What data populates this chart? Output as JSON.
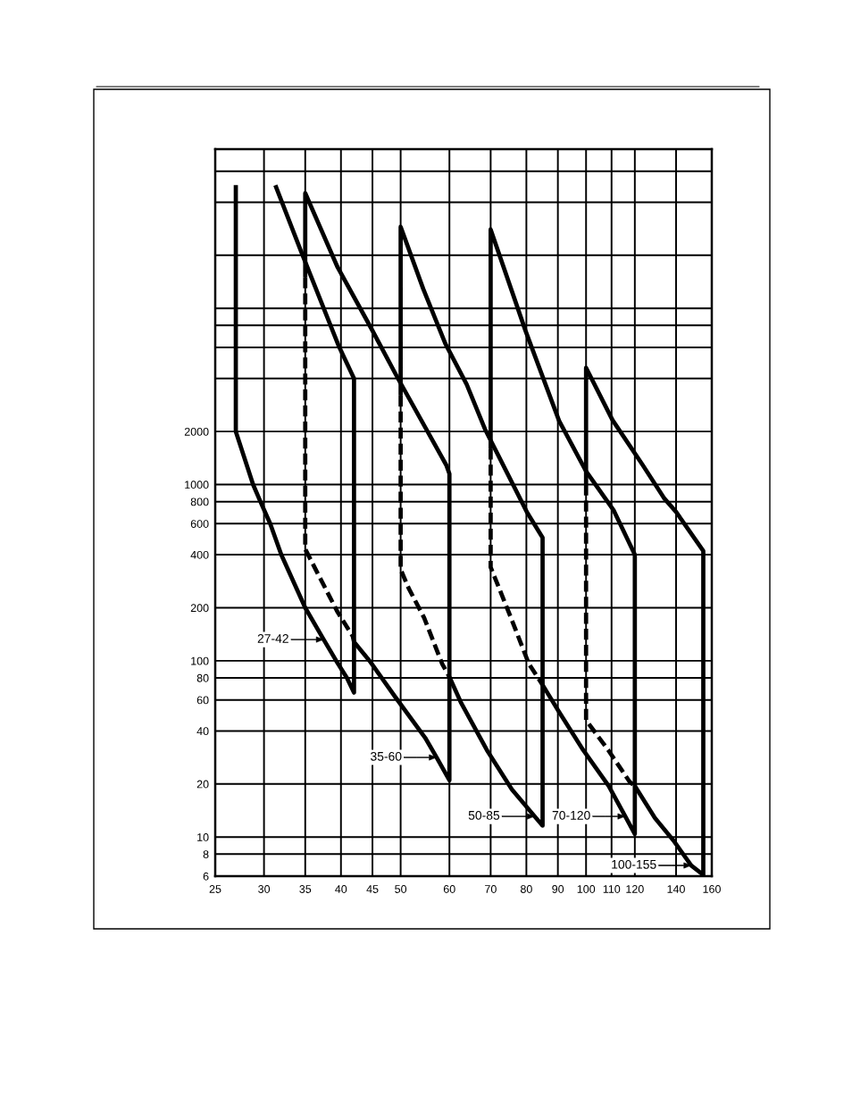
{
  "chart_data": {
    "type": "line",
    "log": "xy",
    "xlim": [
      25,
      160
    ],
    "ylim": [
      6,
      80000
    ],
    "xticks": [
      25,
      30,
      35,
      40,
      45,
      50,
      60,
      70,
      80,
      90,
      100,
      110,
      120,
      140,
      160
    ],
    "yticks": [
      6,
      8,
      10,
      20,
      40,
      60,
      80,
      100,
      200,
      400,
      600,
      800,
      1000,
      2000,
      {
        "value": 4000,
        "label": null
      },
      {
        "value": 6000,
        "label": null
      },
      {
        "value": 8000,
        "label": null
      },
      {
        "value": 10000,
        "label": null
      },
      {
        "value": 20000,
        "label": null
      },
      {
        "value": 40000,
        "label": null
      },
      {
        "value": 60000,
        "label": null
      }
    ],
    "grid": true,
    "series": [
      {
        "color": "#000000",
        "line_style": "solid",
        "x": [
          27,
          27,
          28.8,
          29.6,
          30.7,
          32,
          35,
          37.5,
          39.3,
          40.9,
          42,
          42,
          39.6,
          34.5,
          31.3
        ],
        "values": [
          50000,
          2000,
          1000,
          800,
          600,
          400,
          200,
          132,
          100,
          80,
          66,
          4000,
          6200,
          20800,
          50000
        ]
      },
      {
        "color": "#000000",
        "line_style": "solid",
        "x": [
          35,
          35,
          39.5,
          44.7,
          49.5,
          59.3,
          60,
          60,
          57.2,
          54.8,
          48.9,
          44.7,
          42
        ],
        "values": [
          15000,
          45000,
          17100,
          7800,
          4000,
          1290,
          1150,
          21,
          28.3,
          36.6,
          63,
          98,
          128
        ]
      },
      {
        "color": "#000000",
        "line_style": "dashed",
        "x": [
          35,
          35,
          39.5,
          41.8,
          42
        ],
        "values": [
          15000,
          430,
          189,
          138,
          128
        ]
      },
      {
        "color": "#000000",
        "line_style": "solid",
        "x": [
          50,
          50,
          54.4,
          59.1,
          64,
          68.5,
          80.3,
          85,
          85,
          82.5,
          75.8,
          69,
          62.7,
          60
        ],
        "values": [
          3200,
          29000,
          12900,
          6300,
          3700,
          2070,
          690,
          500,
          11.6,
          13.1,
          18.6,
          31.2,
          57.6,
          81
        ]
      },
      {
        "color": "#000000",
        "line_style": "dashed",
        "x": [
          50,
          50,
          51.5,
          54.6,
          58.4,
          60
        ],
        "values": [
          3200,
          330,
          259,
          175,
          96,
          81
        ]
      },
      {
        "color": "#000000",
        "line_style": "solid",
        "x": [
          70,
          70,
          79.7,
          90.4,
          100,
          110.8,
          120,
          120,
          115.8,
          108.8,
          98.9,
          90,
          85
        ],
        "values": [
          1600,
          28000,
          7500,
          2300,
          1190,
          717,
          400,
          10.4,
          13.1,
          19.5,
          31.2,
          52.5,
          73
        ]
      },
      {
        "color": "#000000",
        "line_style": "dashed",
        "x": [
          70,
          70,
          75.4,
          80.7,
          85
        ],
        "values": [
          1600,
          340,
          178,
          96.5,
          73
        ]
      },
      {
        "color": "#000000",
        "line_style": "solid",
        "x": [
          100,
          100,
          110.4,
          123.6,
          133.8,
          140,
          155,
          155,
          148.2,
          138.5,
          129.4,
          120
        ],
        "values": [
          1000,
          4600,
          2320,
          1290,
          839,
          700,
          420,
          6.1,
          6.9,
          9.6,
          12.8,
          19.5
        ]
      },
      {
        "color": "#000000",
        "line_style": "dashed",
        "x": [
          100,
          100,
          108.6,
          117.8,
          120
        ],
        "values": [
          1000,
          46,
          31.2,
          20.5,
          19.5
        ]
      }
    ],
    "annotations": [
      {
        "text": "27-42",
        "x": 37.5,
        "y": 132
      },
      {
        "text": "35-60",
        "x": 57.2,
        "y": 28.3
      },
      {
        "text": "50-85",
        "x": 82.5,
        "y": 13.1
      },
      {
        "text": "70-120",
        "x": 115.8,
        "y": 13.1
      },
      {
        "text": "100-155",
        "x": 148.2,
        "y": 6.9
      }
    ]
  }
}
